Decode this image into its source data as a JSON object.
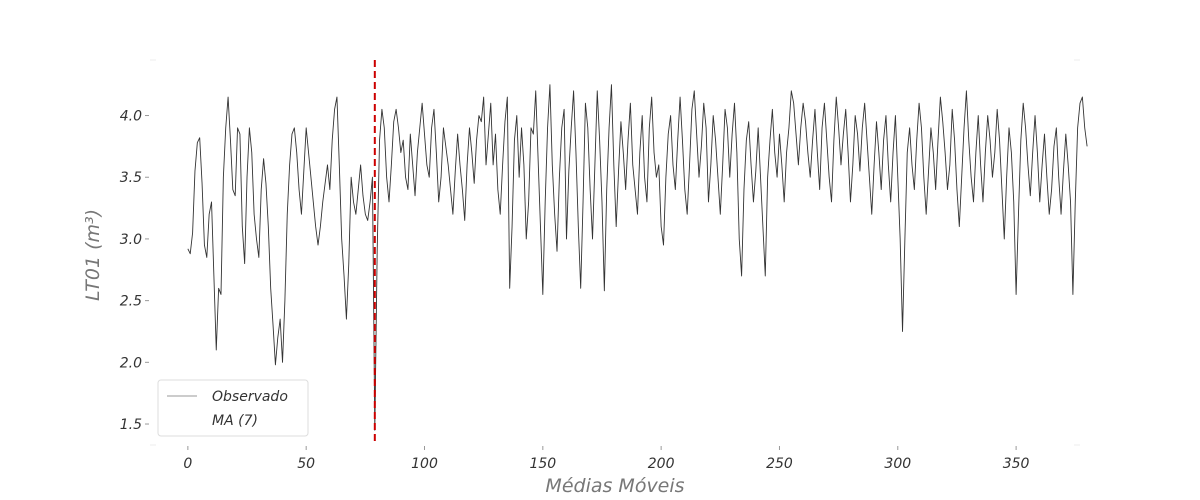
{
  "chart_data": {
    "type": "line",
    "title": "",
    "xlabel": "Médias Móveis",
    "ylabel": "LT01 (m³)",
    "xlim": [
      -16,
      377
    ],
    "ylim": [
      1.33,
      4.45
    ],
    "xticks": [
      0,
      50,
      100,
      150,
      200,
      250,
      300,
      350
    ],
    "yticks": [
      1.5,
      2.0,
      2.5,
      3.0,
      3.5,
      4.0
    ],
    "xtick_labels": [
      "0",
      "50",
      "100",
      "150",
      "200",
      "250",
      "300",
      "350"
    ],
    "ytick_labels": [
      "1.5",
      "2.0",
      "2.5",
      "3.0",
      "3.5",
      "4.0"
    ],
    "grid": false,
    "legend_position": "lower-left",
    "vline": {
      "x": 79,
      "color": "#cc0000",
      "style": "dashed"
    },
    "series": [
      {
        "name": "Observado",
        "color": "#333333",
        "x_start": 0,
        "values": [
          2.92,
          2.88,
          3.05,
          3.55,
          3.78,
          3.82,
          3.45,
          2.95,
          2.85,
          3.2,
          3.3,
          2.7,
          2.1,
          2.6,
          2.55,
          3.5,
          3.9,
          4.15,
          3.8,
          3.4,
          3.35,
          3.9,
          3.85,
          3.1,
          2.8,
          3.5,
          3.9,
          3.7,
          3.2,
          3.0,
          2.85,
          3.4,
          3.65,
          3.45,
          3.1,
          2.6,
          2.3,
          1.98,
          2.2,
          2.35,
          2.0,
          2.5,
          3.2,
          3.6,
          3.85,
          3.9,
          3.7,
          3.4,
          3.2,
          3.55,
          3.9,
          3.7,
          3.5,
          3.3,
          3.1,
          2.95,
          3.1,
          3.3,
          3.45,
          3.6,
          3.4,
          3.8,
          4.05,
          4.15,
          3.6,
          3.0,
          2.7,
          2.35,
          2.8,
          3.5,
          3.3,
          3.2,
          3.4,
          3.6,
          3.35,
          3.2,
          3.15,
          3.3,
          3.5,
          1.45,
          2.9,
          3.8,
          4.05,
          3.9,
          3.5,
          3.3,
          3.6,
          3.95,
          4.05,
          3.9,
          3.7,
          3.8,
          3.5,
          3.4,
          3.85,
          3.6,
          3.35,
          3.7,
          3.9,
          4.1,
          3.85,
          3.6,
          3.5,
          3.9,
          4.05,
          3.7,
          3.3,
          3.5,
          3.9,
          3.75,
          3.6,
          3.4,
          3.2,
          3.55,
          3.85,
          3.6,
          3.4,
          3.15,
          3.6,
          3.9,
          3.7,
          3.45,
          3.8,
          4.0,
          3.95,
          4.15,
          3.6,
          3.85,
          4.1,
          3.6,
          3.85,
          3.4,
          3.2,
          3.6,
          3.95,
          4.15,
          2.6,
          3.1,
          3.8,
          4.0,
          3.5,
          3.9,
          3.6,
          3.0,
          3.3,
          3.9,
          3.85,
          4.2,
          3.65,
          3.1,
          2.55,
          3.3,
          3.9,
          4.25,
          3.6,
          3.2,
          2.9,
          3.5,
          3.9,
          4.05,
          3.0,
          3.55,
          3.9,
          4.2,
          3.7,
          3.1,
          2.6,
          3.3,
          4.1,
          3.9,
          3.4,
          3.0,
          3.6,
          4.2,
          3.8,
          3.3,
          2.58,
          3.4,
          3.9,
          4.25,
          3.6,
          3.1,
          3.55,
          3.95,
          3.7,
          3.4,
          3.8,
          4.1,
          3.6,
          3.4,
          3.2,
          3.7,
          4.0,
          3.5,
          3.3,
          3.9,
          4.15,
          3.7,
          3.5,
          3.6,
          3.1,
          2.95,
          3.5,
          3.85,
          4.0,
          3.6,
          3.4,
          3.8,
          4.15,
          3.8,
          3.4,
          3.2,
          3.6,
          4.05,
          4.2,
          3.85,
          3.5,
          3.75,
          4.1,
          3.9,
          3.3,
          3.6,
          4.0,
          3.8,
          3.5,
          3.2,
          3.6,
          4.05,
          3.9,
          3.5,
          3.85,
          4.1,
          3.7,
          3.0,
          2.7,
          3.4,
          3.8,
          3.95,
          3.6,
          3.3,
          3.55,
          3.9,
          3.5,
          3.1,
          2.7,
          3.5,
          3.8,
          4.05,
          3.7,
          3.5,
          3.85,
          3.6,
          3.3,
          3.7,
          3.9,
          4.2,
          4.1,
          3.85,
          3.6,
          3.9,
          4.1,
          3.95,
          3.7,
          3.5,
          3.8,
          4.05,
          3.7,
          3.4,
          3.9,
          4.1,
          3.8,
          3.5,
          3.3,
          3.8,
          4.15,
          3.9,
          3.6,
          3.85,
          4.05,
          3.7,
          3.3,
          3.6,
          4.0,
          3.85,
          3.55,
          3.9,
          4.1,
          3.8,
          3.5,
          3.2,
          3.6,
          3.95,
          3.7,
          3.4,
          3.8,
          4.0,
          3.6,
          3.3,
          3.7,
          4.0,
          3.5,
          3.0,
          2.25,
          3.0,
          3.7,
          3.9,
          3.6,
          3.4,
          3.8,
          4.1,
          3.9,
          3.5,
          3.2,
          3.55,
          3.9,
          3.7,
          3.4,
          3.8,
          4.15,
          3.95,
          3.7,
          3.4,
          3.6,
          4.05,
          3.8,
          3.4,
          3.1,
          3.5,
          3.9,
          4.2,
          3.8,
          3.5,
          3.3,
          3.7,
          4.0,
          3.6,
          3.3,
          3.7,
          4.0,
          3.8,
          3.5,
          3.7,
          4.05,
          3.8,
          3.4,
          3.0,
          3.5,
          3.9,
          3.7,
          3.3,
          2.55,
          3.2,
          3.8,
          4.1,
          3.9,
          3.6,
          3.35,
          3.7,
          4.0,
          3.7,
          3.3,
          3.6,
          3.85,
          3.5,
          3.2,
          3.4,
          3.75,
          3.9,
          3.5,
          3.2,
          3.55,
          3.85,
          3.6,
          3.3,
          2.55,
          3.3,
          3.9,
          4.1,
          4.15,
          3.9,
          3.75
        ]
      },
      {
        "name": "MA (7)",
        "color": "#333333",
        "values": []
      }
    ]
  }
}
